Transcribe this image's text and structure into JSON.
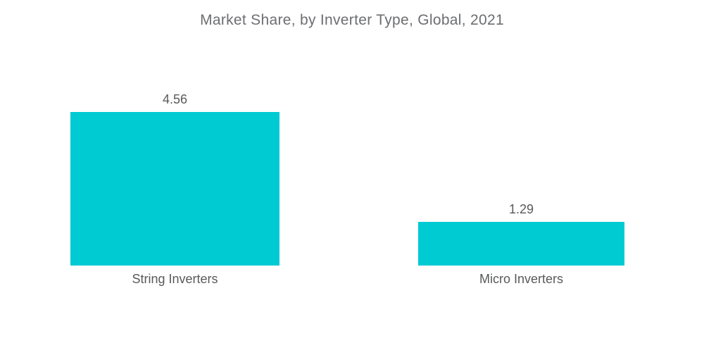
{
  "title": "Market Share, by Inverter Type, Global, 2021",
  "colors": {
    "bar_fill": "#00CAD2",
    "title_text": "#6D6E71",
    "label_text": "#58595B",
    "background": "#FFFFFF"
  },
  "chart_data": {
    "type": "bar",
    "orientation": "vertical",
    "title": "Market Share, by Inverter Type, Global, 2021",
    "categories": [
      "String Inverters",
      "Micro Inverters"
    ],
    "values": [
      4.56,
      1.29
    ],
    "value_labels": [
      "4.56",
      "1.29"
    ],
    "xlabel": "",
    "ylabel": "",
    "ylim": [
      0,
      5
    ],
    "grid": false,
    "legend": "none",
    "axes_visible": false
  },
  "bars": [
    {
      "category": "String Inverters",
      "value": 4.56,
      "label": "4.56"
    },
    {
      "category": "Micro Inverters",
      "value": 1.29,
      "label": "1.29"
    }
  ]
}
